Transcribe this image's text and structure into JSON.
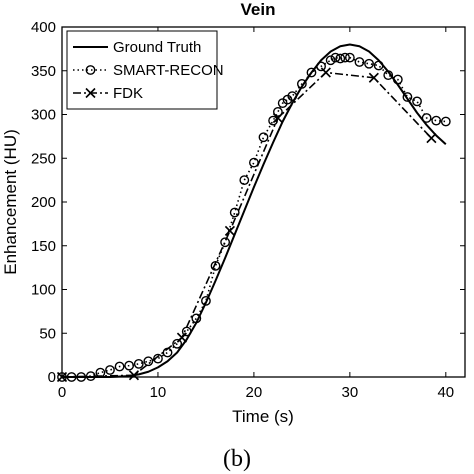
{
  "chart_data": {
    "type": "line",
    "title": "Vein",
    "xlabel": "Time (s)",
    "ylabel": "Enhancement (HU)",
    "xlim": [
      0,
      42
    ],
    "ylim": [
      0,
      400
    ],
    "x_ticks": [
      0,
      10,
      20,
      30,
      40
    ],
    "y_ticks": [
      0,
      50,
      100,
      150,
      200,
      250,
      300,
      350,
      400
    ],
    "grid": false,
    "legend_position": "top-left",
    "caption": "(b)",
    "series": [
      {
        "name": "Ground Truth",
        "style": "solid",
        "marker": "none",
        "x": [
          0,
          5,
          7,
          8,
          9,
          10,
          11,
          12,
          13,
          14,
          15,
          16,
          17,
          18,
          19,
          20,
          21,
          22,
          23,
          24,
          25,
          26,
          27,
          28,
          29,
          30,
          31,
          32,
          33,
          34,
          35,
          36,
          37,
          38,
          39,
          40
        ],
        "y": [
          0,
          0,
          1,
          3,
          6,
          11,
          18,
          28,
          43,
          62,
          85,
          110,
          136,
          163,
          190,
          217,
          243,
          268,
          292,
          313,
          332,
          348,
          362,
          372,
          378,
          380,
          378,
          372,
          362,
          349,
          334,
          318,
          302,
          288,
          276,
          266
        ]
      },
      {
        "name": "SMART-RECON",
        "style": "dotted",
        "marker": "circle",
        "x": [
          0,
          1,
          2,
          3,
          4,
          5,
          6,
          7,
          8,
          9,
          10,
          11,
          12,
          13,
          14,
          15,
          16,
          17,
          18,
          19,
          20,
          21,
          22,
          22.5,
          23,
          23.5,
          24,
          25,
          26,
          27,
          28,
          28.5,
          29,
          29.5,
          30,
          31,
          32,
          33,
          34,
          35,
          36,
          37,
          38,
          39,
          40
        ],
        "y": [
          0,
          0,
          0,
          1,
          5,
          8,
          12,
          13,
          15,
          18,
          21,
          28,
          38,
          52,
          67,
          87,
          127,
          154,
          188,
          225,
          245,
          274,
          293,
          303,
          313,
          317,
          321,
          335,
          348,
          355,
          362,
          365,
          364,
          365,
          365,
          360,
          358,
          356,
          345,
          340,
          320,
          315,
          296,
          293,
          292
        ]
      },
      {
        "name": "FDK",
        "style": "dash-dot",
        "marker": "x",
        "x": [
          0,
          7.5,
          12.5,
          17.5,
          22.5,
          27.5,
          32.5,
          38.5
        ],
        "y": [
          0,
          2,
          45,
          167,
          296,
          348,
          342,
          273
        ]
      }
    ]
  }
}
